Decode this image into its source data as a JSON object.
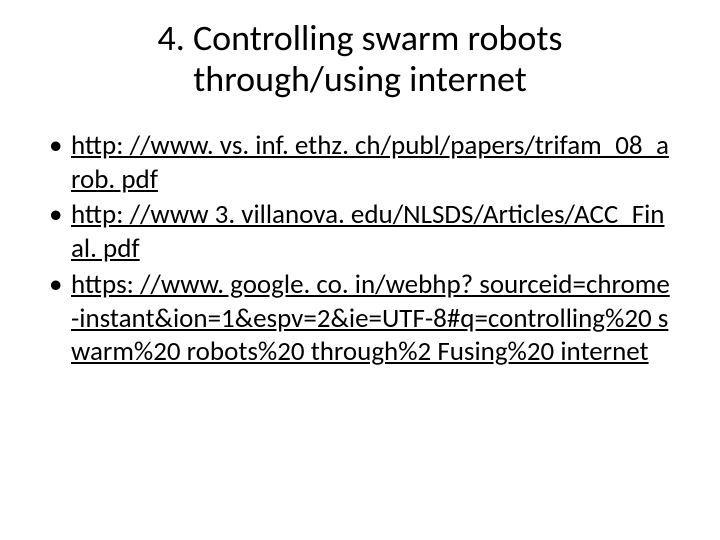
{
  "title": "4. Controlling swarm robots through/using internet",
  "bullets": [
    "http: //www. vs. inf. ethz. ch/publ/papers/trifam_08_arob. pdf",
    "http: //www 3. villanova. edu/NLSDS/Articles/ACC_Final. pdf",
    "https: //www. google. co. in/webhp? sourceid=chrome-instant&ion=1&espv=2&ie=UTF-8#q=controlling%20 swarm%20 robots%20 through%2 Fusing%20 internet"
  ],
  "colors": {
    "background": "#ffffff",
    "text": "#000000"
  },
  "typography": {
    "title_fontsize": 36,
    "bullet_fontsize": 27,
    "font_family": "Calibri"
  }
}
